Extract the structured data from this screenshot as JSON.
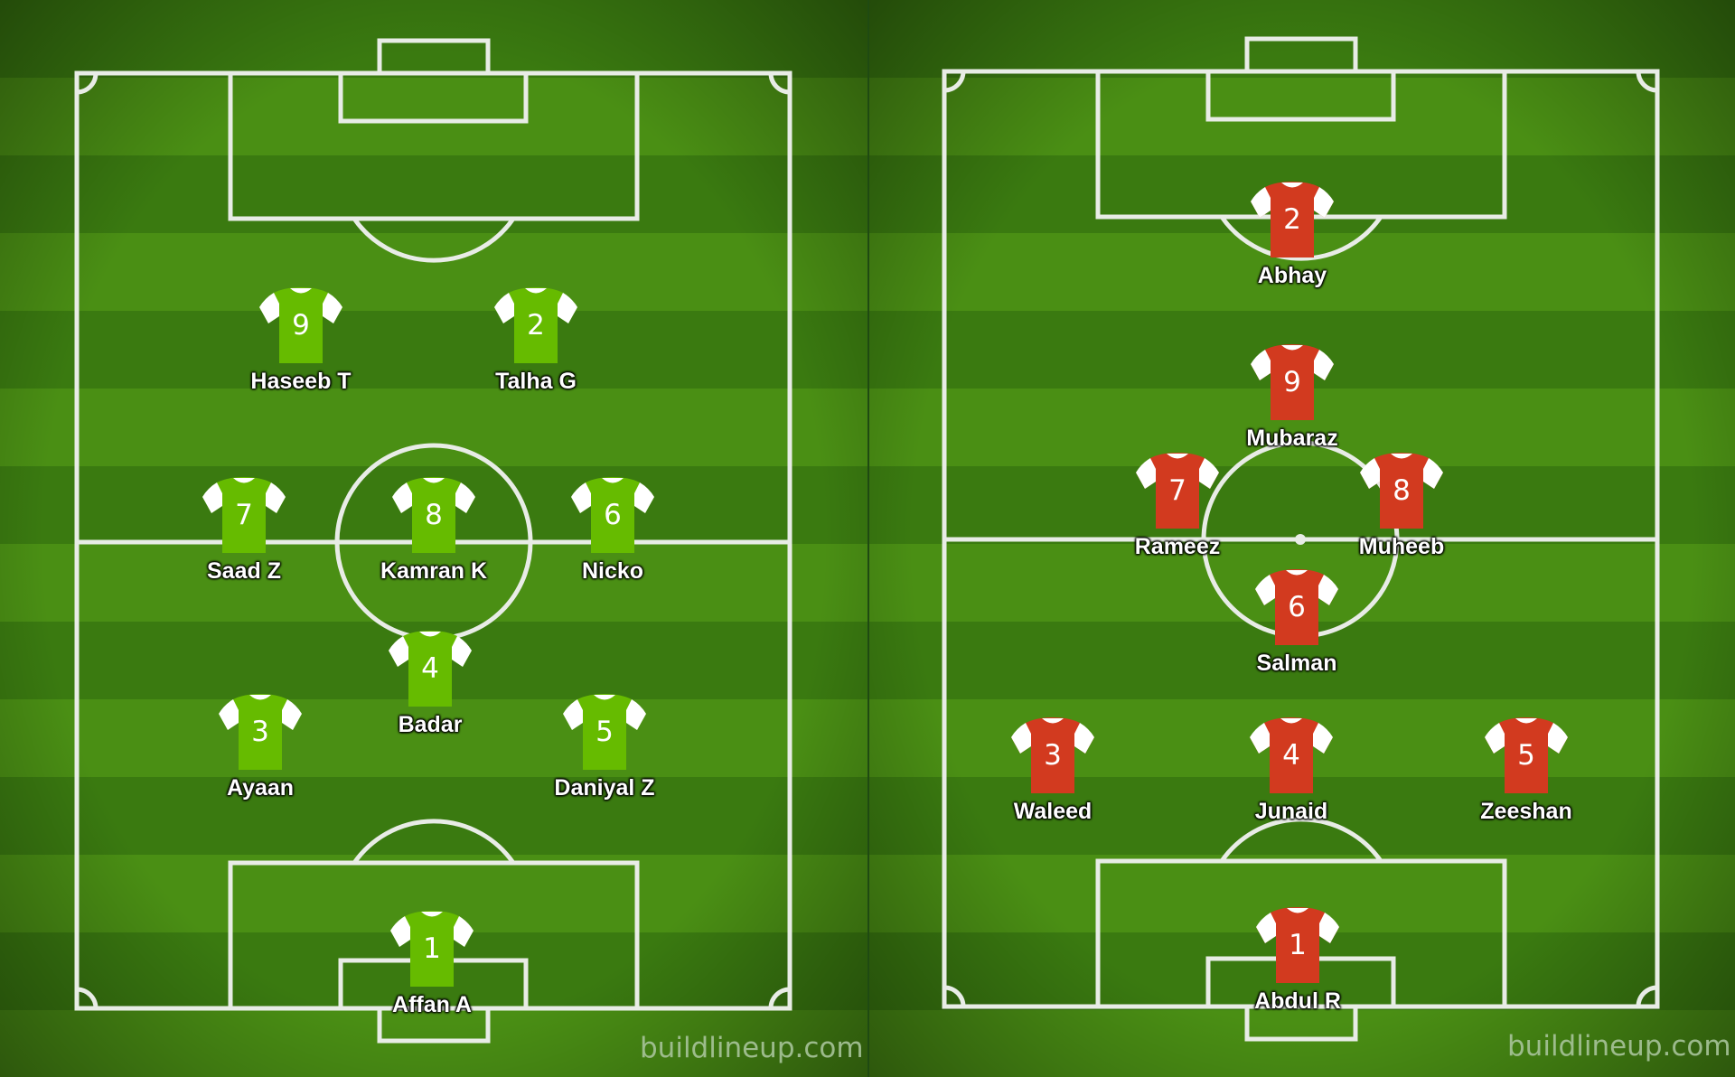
{
  "watermark": "buildlineup.com",
  "colors": {
    "team_left_shirt": "#66bb00",
    "team_right_shirt": "#d23a1f",
    "sleeve": "#ffffff",
    "stripe_dark": "#3a7a10",
    "stripe_light": "#4a8f14",
    "lines": "#e8ece6"
  },
  "teams": [
    {
      "id": "left",
      "players": [
        {
          "number": "9",
          "name": "Haseeb T"
        },
        {
          "number": "2",
          "name": "Talha G"
        },
        {
          "number": "7",
          "name": "Saad Z"
        },
        {
          "number": "8",
          "name": "Kamran K"
        },
        {
          "number": "6",
          "name": "Nicko"
        },
        {
          "number": "4",
          "name": "Badar"
        },
        {
          "number": "3",
          "name": "Ayaan"
        },
        {
          "number": "5",
          "name": "Daniyal Z"
        },
        {
          "number": "1",
          "name": "Affan A"
        }
      ]
    },
    {
      "id": "right",
      "players": [
        {
          "number": "2",
          "name": "Abhay"
        },
        {
          "number": "9",
          "name": "Mubaraz"
        },
        {
          "number": "7",
          "name": "Rameez"
        },
        {
          "number": "8",
          "name": "Muheeb"
        },
        {
          "number": "6",
          "name": "Salman"
        },
        {
          "number": "3",
          "name": "Waleed"
        },
        {
          "number": "4",
          "name": "Junaid"
        },
        {
          "number": "5",
          "name": "Zeeshan"
        },
        {
          "number": "1",
          "name": "Abdul R"
        }
      ]
    }
  ]
}
